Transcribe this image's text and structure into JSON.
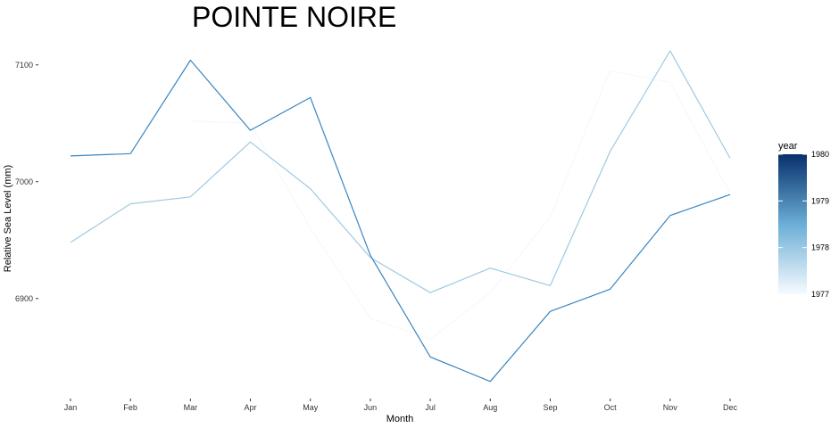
{
  "chart_data": {
    "type": "line",
    "title": "POINTE NOIRE",
    "xlabel": "Month",
    "ylabel": "Relative Sea Level (mm)",
    "categories": [
      "Jan",
      "Feb",
      "Mar",
      "Apr",
      "May",
      "Jun",
      "Jul",
      "Aug",
      "Sep",
      "Oct",
      "Nov",
      "Dec"
    ],
    "ylim": [
      6825,
      7125
    ],
    "yticks": [
      6900,
      7000,
      7100
    ],
    "grid": false,
    "legend": {
      "title": "year",
      "type": "colorbar",
      "placement": "right",
      "range": [
        1977,
        1980
      ],
      "ticks": [
        1977,
        1978,
        1979,
        1980
      ],
      "colors": [
        "#f7fbff",
        "#6baed6",
        "#08306b"
      ]
    },
    "series": [
      {
        "year": 1977,
        "color": "#f4f8fd",
        "values": [
          null,
          null,
          7052,
          7050,
          6960,
          6883,
          6865,
          6905,
          6970,
          7095,
          7085,
          6990
        ]
      },
      {
        "year": 1978,
        "color": "#9ecae1",
        "values": [
          6948,
          6981,
          6987,
          7034,
          6994,
          6935,
          6905,
          6926,
          6911,
          7026,
          7112,
          7020
        ]
      },
      {
        "year": 1979,
        "color": "#3a85bf",
        "values": [
          7022,
          7024,
          7104,
          7044,
          7072,
          6937,
          6850,
          6829,
          6889,
          6908,
          6971,
          6989
        ]
      }
    ]
  }
}
